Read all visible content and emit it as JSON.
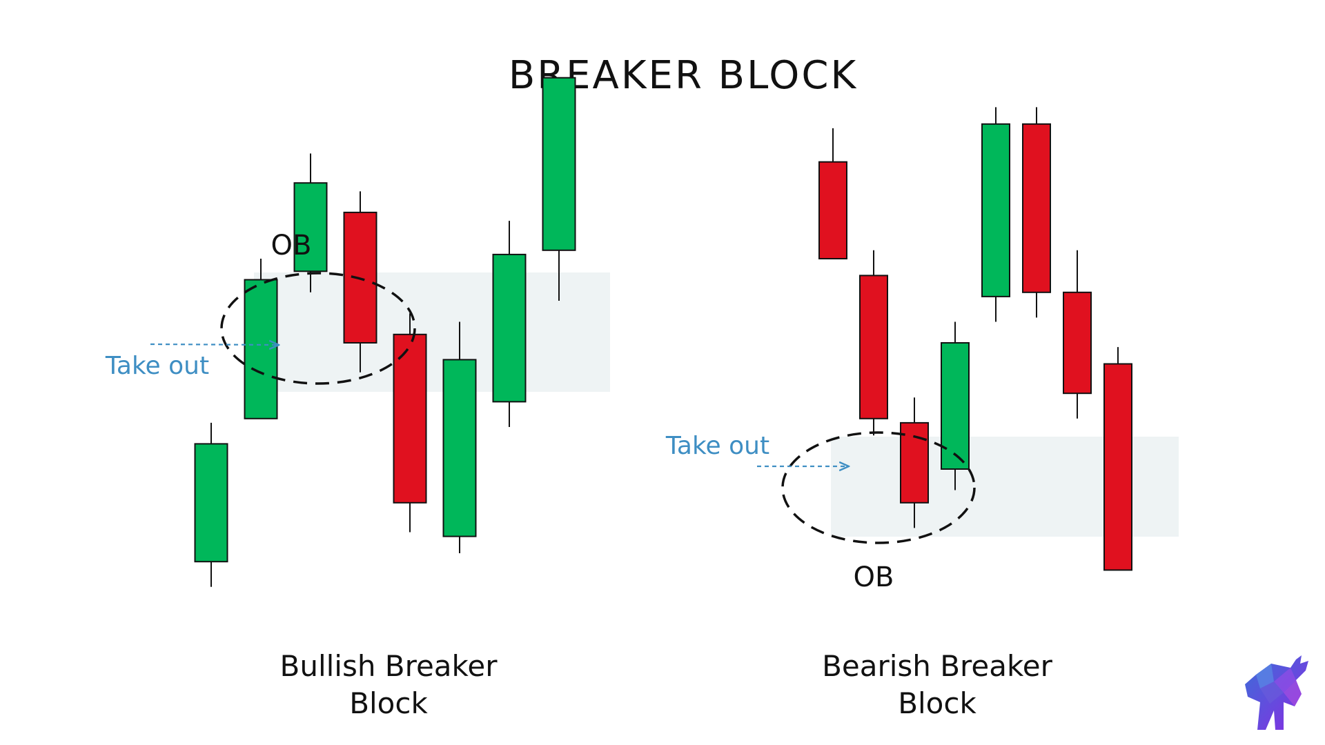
{
  "title": "BREAKER BLOCK",
  "colors": {
    "bullish": "#00b75a",
    "bearish": "#e0111f",
    "zone": "#eef3f4",
    "annotation": "#3e8ec3",
    "outline": "#111111",
    "text": "#111111",
    "logo_blue": "#3a6fd8",
    "logo_purple": "#8a2be2"
  },
  "icons": {
    "logo": "bull-logo-icon"
  },
  "diagrams": [
    {
      "id": "bullish",
      "caption_line1": "Bullish Breaker",
      "caption_line2": "Block",
      "ob_label": "OB",
      "takeout_label": "Take out",
      "candles": [
        {
          "direction": "bull",
          "open": 14,
          "close": 28,
          "high": 30.5,
          "low": 11
        },
        {
          "direction": "bull",
          "open": 31,
          "close": 47.5,
          "high": 50,
          "low": 31
        },
        {
          "direction": "bull",
          "open": 48.5,
          "close": 59,
          "high": 62.5,
          "low": 46
        },
        {
          "direction": "bear",
          "open": 55.5,
          "close": 40,
          "high": 58,
          "low": 36.5
        },
        {
          "direction": "bear",
          "open": 41,
          "close": 21,
          "high": 43.5,
          "low": 17.5
        },
        {
          "direction": "bull",
          "open": 17,
          "close": 38,
          "high": 42.5,
          "low": 15
        },
        {
          "direction": "bull",
          "open": 33,
          "close": 50.5,
          "high": 54.5,
          "low": 30
        },
        {
          "direction": "bull",
          "open": 51,
          "close": 71.5,
          "high": 71.5,
          "low": 45
        }
      ]
    },
    {
      "id": "bearish",
      "caption_line1": "Bearish Breaker",
      "caption_line2": "Block",
      "ob_label": "OB",
      "takeout_label": "Take out",
      "candles": [
        {
          "direction": "bear",
          "open": 61.5,
          "close": 50,
          "high": 65.5,
          "low": 50
        },
        {
          "direction": "bear",
          "open": 48,
          "close": 31,
          "high": 51,
          "low": 29
        },
        {
          "direction": "bear",
          "open": 30.5,
          "close": 21,
          "high": 33.5,
          "low": 18
        },
        {
          "direction": "bull",
          "open": 25,
          "close": 40,
          "high": 42.5,
          "low": 22.5
        },
        {
          "direction": "bull",
          "open": 45.5,
          "close": 66,
          "high": 68,
          "low": 42.5
        },
        {
          "direction": "bear",
          "open": 66,
          "close": 46,
          "high": 68,
          "low": 43
        },
        {
          "direction": "bear",
          "open": 46,
          "close": 34,
          "high": 51,
          "low": 31
        },
        {
          "direction": "bear",
          "open": 37.5,
          "close": 13,
          "high": 39.5,
          "low": 13
        }
      ]
    }
  ]
}
